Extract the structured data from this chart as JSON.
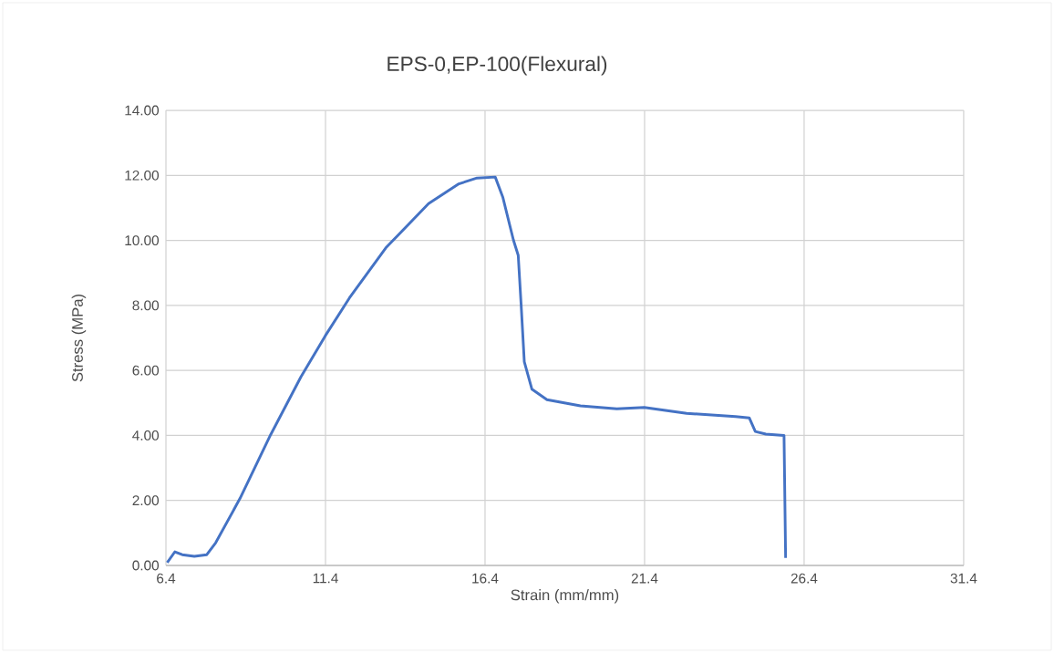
{
  "chart_data": {
    "type": "line",
    "title": "EPS-0,EP-100(Flexural)",
    "xlabel": "Strain (mm/mm)",
    "ylabel": "Stress (MPa)",
    "xlim": [
      6.4,
      31.4
    ],
    "xticks": [
      6.4,
      11.4,
      16.4,
      21.4,
      26.4,
      31.4
    ],
    "ylim": [
      0,
      14
    ],
    "yticks": [
      {
        "value": 0,
        "label": "0.00"
      },
      {
        "value": 2,
        "label": "2.00"
      },
      {
        "value": 4,
        "label": "4.00"
      },
      {
        "value": 6,
        "label": "6.00"
      },
      {
        "value": 8,
        "label": "8.00"
      },
      {
        "value": 10,
        "label": "10.00"
      },
      {
        "value": 12,
        "label": "12.00"
      },
      {
        "value": 14,
        "label": "14.00"
      }
    ],
    "grid": true,
    "marker": "none",
    "line_style": "solid",
    "series": [
      {
        "color": "#4472c4",
        "x": [
          6.44,
          6.68,
          6.91,
          7.29,
          7.68,
          7.96,
          8.72,
          9.68,
          10.63,
          11.39,
          12.15,
          13.29,
          14.63,
          15.58,
          16.15,
          16.72,
          16.96,
          17.29,
          17.44,
          17.53,
          17.63,
          17.87,
          18.34,
          19.39,
          20.53,
          21.39,
          22.72,
          24.25,
          24.68,
          24.87,
          25.2,
          25.77,
          25.82
        ],
        "values": [
          0.09,
          0.42,
          0.33,
          0.28,
          0.33,
          0.7,
          2.06,
          4.02,
          5.8,
          7.06,
          8.23,
          9.77,
          11.13,
          11.74,
          11.92,
          11.95,
          11.32,
          10.01,
          9.54,
          8.04,
          6.27,
          5.42,
          5.1,
          4.91,
          4.82,
          4.86,
          4.68,
          4.58,
          4.54,
          4.12,
          4.04,
          4.0,
          0.23
        ]
      }
    ]
  }
}
